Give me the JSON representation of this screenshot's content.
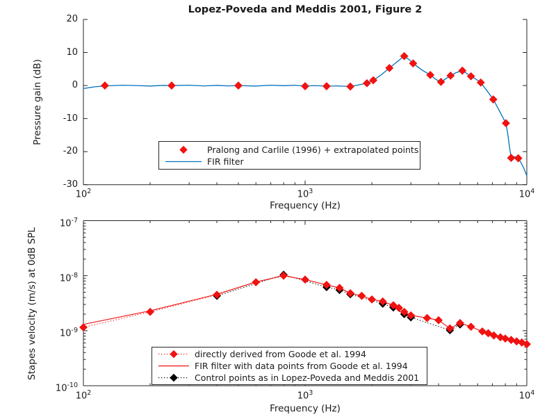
{
  "figure": {
    "title": "Lopez-Poveda and Meddis 2001, Figure 2",
    "background": "#ffffff"
  },
  "colors": {
    "red": "#f01311",
    "blue": "#0072bd",
    "black": "#000000",
    "axis": "#262626",
    "text": "#1a1a1a"
  },
  "chart_data": [
    {
      "type": "line",
      "title": "Lopez-Poveda and Meddis 2001, Figure 2",
      "xlabel": "Frequency (Hz)",
      "ylabel": "Pressure gain (dB)",
      "x_scale": "log",
      "y_scale": "linear",
      "xlim": [
        100,
        10000
      ],
      "ylim": [
        -30,
        20
      ],
      "grid": false,
      "legend_position": "inside-lower-center",
      "yticks": [
        {
          "label": "20",
          "v": 20
        },
        {
          "label": "10",
          "v": 10
        },
        {
          "label": "0",
          "v": 0
        },
        {
          "label": "-10",
          "v": -10
        },
        {
          "label": "-20",
          "v": -20
        },
        {
          "label": "-30",
          "v": -30
        }
      ],
      "xticks": [
        {
          "base": "10",
          "exp": "2",
          "v": 100
        },
        {
          "base": "10",
          "exp": "3",
          "v": 1000
        },
        {
          "base": "10",
          "exp": "4",
          "v": 10000
        }
      ],
      "series": [
        {
          "name": "FIR filter",
          "color": "#0072bd",
          "linestyle": "solid",
          "marker": "none",
          "width": 1.3,
          "points": [
            [
              100,
              -0.9
            ],
            [
              112,
              -0.4
            ],
            [
              125,
              -0.1
            ],
            [
              150,
              0.1
            ],
            [
              175,
              0
            ],
            [
              200,
              -0.15
            ],
            [
              230,
              0.05
            ],
            [
              250,
              0
            ],
            [
              300,
              0.1
            ],
            [
              350,
              -0.1
            ],
            [
              400,
              0.05
            ],
            [
              450,
              -0.1
            ],
            [
              500,
              0
            ],
            [
              600,
              -0.15
            ],
            [
              700,
              0.1
            ],
            [
              800,
              -0.05
            ],
            [
              900,
              0.1
            ],
            [
              1000,
              -0.2
            ],
            [
              1100,
              0
            ],
            [
              1250,
              -0.2
            ],
            [
              1400,
              -0.1
            ],
            [
              1600,
              -0.3
            ],
            [
              1750,
              0.2
            ],
            [
              1900,
              0.7
            ],
            [
              2030,
              1.6
            ],
            [
              2200,
              3.2
            ],
            [
              2400,
              5.3
            ],
            [
              2600,
              7.2
            ],
            [
              2800,
              8.9
            ],
            [
              2950,
              7.8
            ],
            [
              3070,
              6.7
            ],
            [
              3350,
              4.8
            ],
            [
              3670,
              3.2
            ],
            [
              3900,
              1.8
            ],
            [
              4100,
              1.1
            ],
            [
              4300,
              2.0
            ],
            [
              4530,
              3.0
            ],
            [
              4800,
              3.9
            ],
            [
              5120,
              4.5
            ],
            [
              5350,
              3.7
            ],
            [
              5600,
              2.8
            ],
            [
              5900,
              1.9
            ],
            [
              6200,
              0.9
            ],
            [
              6600,
              -1.5
            ],
            [
              7060,
              -4.2
            ],
            [
              7500,
              -7.5
            ],
            [
              8050,
              -11.4
            ],
            [
              8200,
              -14.5
            ],
            [
              8350,
              -18.5
            ],
            [
              8500,
              -21.9
            ],
            [
              8800,
              -21.5
            ],
            [
              9150,
              -22.0
            ],
            [
              9400,
              -23.2
            ],
            [
              9700,
              -25.1
            ],
            [
              10000,
              -27.3
            ]
          ]
        },
        {
          "name": "Pralong and Carlile (1996) + extrapolated points",
          "color": "#f01311",
          "linestyle": "none",
          "marker": "diamond",
          "points": [
            [
              125,
              0
            ],
            [
              250,
              0
            ],
            [
              500,
              0
            ],
            [
              1000,
              -0.2
            ],
            [
              1250,
              -0.2
            ],
            [
              1600,
              -0.3
            ],
            [
              1900,
              0.7
            ],
            [
              2030,
              1.6
            ],
            [
              2400,
              5.3
            ],
            [
              2800,
              8.9
            ],
            [
              3070,
              6.7
            ],
            [
              3670,
              3.2
            ],
            [
              4100,
              1.1
            ],
            [
              4530,
              3.0
            ],
            [
              5120,
              4.5
            ],
            [
              5600,
              2.8
            ],
            [
              6200,
              0.9
            ],
            [
              7060,
              -4.2
            ],
            [
              8050,
              -11.4
            ],
            [
              8500,
              -21.9
            ],
            [
              9150,
              -22.0
            ]
          ]
        }
      ]
    },
    {
      "type": "line",
      "title": "",
      "xlabel": "Frequency (Hz)",
      "ylabel": "Stapes velocity (m/s) at 0dB SPL",
      "x_scale": "log",
      "y_scale": "log",
      "xlim": [
        100,
        10000
      ],
      "ylim": [
        1e-10,
        1e-07
      ],
      "grid": false,
      "legend_position": "inside-lower-center",
      "yticks": [
        {
          "base": "10",
          "exp": "-7",
          "v": 1e-07
        },
        {
          "base": "10",
          "exp": "-8",
          "v": 1e-08
        },
        {
          "base": "10",
          "exp": "-9",
          "v": 1e-09
        },
        {
          "base": "10",
          "exp": "-10",
          "v": 1e-10
        }
      ],
      "xticks": [
        {
          "base": "10",
          "exp": "2",
          "v": 100
        },
        {
          "base": "10",
          "exp": "3",
          "v": 1000
        },
        {
          "base": "10",
          "exp": "4",
          "v": 10000
        }
      ],
      "series": [
        {
          "name": "Control points as in Lopez-Poveda and Meddis 2001",
          "color": "#000000",
          "linestyle": "dotted",
          "marker": "diamond",
          "points": [
            [
              400,
              4.3e-09
            ],
            [
              800,
              1.04e-08
            ],
            [
              1250,
              6.2e-09
            ],
            [
              1430,
              5.5e-09
            ],
            [
              1600,
              4.6e-09
            ],
            [
              2240,
              3.1e-09
            ],
            [
              2500,
              2.65e-09
            ],
            [
              2800,
              2e-09
            ],
            [
              3000,
              1.75e-09
            ],
            [
              4500,
              1.02e-09
            ],
            [
              5000,
              1.3e-09
            ]
          ]
        },
        {
          "name": "FIR filter with data points from Goode et al. 1994",
          "color": "#f01311",
          "linestyle": "solid",
          "marker": "none",
          "width": 1.1,
          "points": [
            [
              100,
              1.3e-09
            ],
            [
              200,
              2.3e-09
            ],
            [
              400,
              4.6e-09
            ],
            [
              600,
              7.7e-09
            ],
            [
              800,
              1e-08
            ],
            [
              1000,
              8.5e-09
            ],
            [
              1250,
              6.8e-09
            ],
            [
              1430,
              6e-09
            ],
            [
              1600,
              4.8e-09
            ],
            [
              1800,
              4.3e-09
            ],
            [
              2000,
              3.7e-09
            ],
            [
              2240,
              3.4e-09
            ],
            [
              2500,
              2.9e-09
            ],
            [
              2650,
              2.6e-09
            ],
            [
              2800,
              2.2e-09
            ],
            [
              3000,
              1.9e-09
            ],
            [
              3550,
              1.7e-09
            ],
            [
              4000,
              1.55e-09
            ],
            [
              4500,
              1.1e-09
            ],
            [
              5000,
              1.38e-09
            ],
            [
              5600,
              1.18e-09
            ],
            [
              6300,
              9.7e-10
            ],
            [
              6700,
              9e-10
            ],
            [
              7100,
              8.2e-10
            ],
            [
              7600,
              7.6e-10
            ],
            [
              8000,
              7.2e-10
            ],
            [
              8500,
              6.8e-10
            ],
            [
              9000,
              6.4e-10
            ],
            [
              9500,
              6.1e-10
            ],
            [
              10000,
              5.7e-10
            ]
          ]
        },
        {
          "name": "directly derived from Goode et al. 1994",
          "color": "#f01311",
          "linestyle": "dotted",
          "marker": "diamond",
          "points": [
            [
              100,
              1.15e-09
            ],
            [
              200,
              2.2e-09
            ],
            [
              400,
              4.5e-09
            ],
            [
              600,
              7.6e-09
            ],
            [
              800,
              1e-08
            ],
            [
              1000,
              8.5e-09
            ],
            [
              1250,
              6.8e-09
            ],
            [
              1430,
              6e-09
            ],
            [
              1600,
              4.8e-09
            ],
            [
              1800,
              4.3e-09
            ],
            [
              2000,
              3.7e-09
            ],
            [
              2240,
              3.4e-09
            ],
            [
              2500,
              2.9e-09
            ],
            [
              2650,
              2.6e-09
            ],
            [
              2800,
              2.2e-09
            ],
            [
              3000,
              1.9e-09
            ],
            [
              3550,
              1.7e-09
            ],
            [
              4000,
              1.55e-09
            ],
            [
              4500,
              1.1e-09
            ],
            [
              5000,
              1.38e-09
            ],
            [
              5600,
              1.18e-09
            ],
            [
              6300,
              9.7e-10
            ],
            [
              6700,
              9e-10
            ],
            [
              7100,
              8.2e-10
            ],
            [
              7600,
              7.6e-10
            ],
            [
              8000,
              7.2e-10
            ],
            [
              8500,
              6.8e-10
            ],
            [
              9000,
              6.4e-10
            ],
            [
              9500,
              6.1e-10
            ],
            [
              10000,
              5.7e-10
            ]
          ]
        }
      ]
    }
  ]
}
